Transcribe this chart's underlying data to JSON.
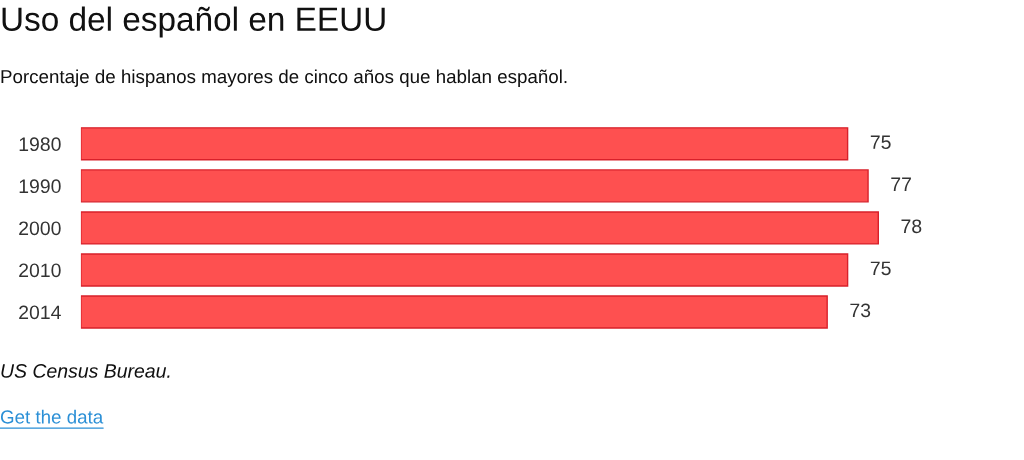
{
  "chart_data": {
    "type": "bar",
    "orientation": "horizontal",
    "title": "Uso del español en EEUU",
    "subtitle": "Porcentaje de hispanos mayores de cinco años que hablan español.",
    "categories": [
      "1980",
      "1990",
      "2000",
      "2010",
      "2014"
    ],
    "values": [
      75,
      77,
      78,
      75,
      73
    ],
    "color": "#fe5050",
    "data_labels": true,
    "tick_labels": "y",
    "annotations": [
      "US Census Bureau.",
      "Get the data"
    ]
  }
}
